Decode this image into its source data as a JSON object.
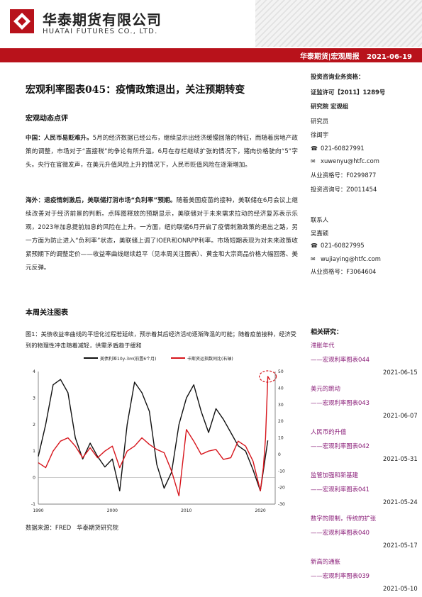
{
  "header": {
    "brand_cn": "华泰期货有限公司",
    "brand_en": "HUATAI FUTURES CO., LTD.",
    "bar_text": "华泰期货|宏观周报   2021-06-19",
    "brand_color": "#b8121b"
  },
  "title": "宏观利率图表045：疫情政策退出，关注预期转变",
  "section_dynamics": "宏观动态点评",
  "p1_bold": "中国：人民币易贬难升。",
  "p1_text": "5月的经济数据已经公布，继续显示出经济缓慢回落的特征，而随着房地产政策的调整，市场对于“直接税”的争论有所升温。6月在存栏继续扩张的情况下，猪肉价格驶向“5”字头。央行在官微发声，在美元升值风险上升的情况下，人民币贬值风险在逐渐增加。",
  "p2_bold": "海外：退疫情刺激后，美联储打消市场“负利率”预期。",
  "p2_text": "随着美国疫苗的接种，美联储在6月会议上继续改善对于经济前景的判断。点阵图释放的预期显示，美联储对于未来需求拉动的经济复苏表示乐观，2023年加息提前加息的风险在上升。一方面，纽约联储6月开启了疫情刺激政策的退出之路，另一方面为防止进入“负利率”状态，美联储上调了IOER和ONRPP利率。市场短期表现为对未来政策收紧预期下的调整定价——收益率曲线继续趋平（见本周关注图表）、黄金和大宗商品价格大幅回落、美元反弹。",
  "analyst": {
    "heading": "投资咨询业务资格：",
    "license": "证监许可【2011】1289号",
    "dept": "研究院  宏观组",
    "role1": "研究员",
    "name1": "徐闽宇",
    "phone1": "021-60827991",
    "email1": "xuwenyu@htfc.com",
    "cert1": "从业资格号：F0299877",
    "invest1": "投资咨询号：Z0011454",
    "role2": "联系人",
    "name2": "吴嘉颖",
    "phone2": "021-60827995",
    "email2": "wujiaying@htfc.com",
    "cert2": "从业资格号：F3064604"
  },
  "section_chart": "本周关注图表",
  "chart_caption": "图1：美债收益率曲线的平坦化过程若延续，预示着其后经济活动逐渐降温的可能；随着疫苗接种，经济受到的物理性冲击随着减轻，供需矛盾趋于缓和",
  "chart_data": {
    "type": "line",
    "series": [
      {
        "name": "美债利差10y-3m(前置6个月)",
        "color": "#111111",
        "axis": "left",
        "x": [
          1990,
          1991,
          1992,
          1993,
          1994,
          1995,
          1996,
          1997,
          1998,
          1999,
          2000,
          2001,
          2002,
          2003,
          2004,
          2005,
          2006,
          2007,
          2008,
          2009,
          2010,
          2011,
          2012,
          2013,
          2014,
          2015,
          2016,
          2017,
          2018,
          2019,
          2020,
          2021
        ],
        "values": [
          0.8,
          2.0,
          3.5,
          3.7,
          3.2,
          1.5,
          0.7,
          1.3,
          0.8,
          0.4,
          0.7,
          -0.5,
          2.0,
          3.6,
          3.2,
          2.5,
          0.5,
          -0.4,
          0.2,
          2.0,
          3.0,
          3.5,
          2.5,
          1.7,
          2.6,
          2.2,
          1.7,
          1.2,
          1.0,
          0.3,
          -0.5,
          1.4
        ]
      },
      {
        "name": "卡斯资运指数同比(右轴)",
        "color": "#d7151c",
        "axis": "right",
        "x": [
          1990,
          1991,
          1992,
          1993,
          1994,
          1995,
          1996,
          1997,
          1998,
          1999,
          2000,
          2001,
          2002,
          2003,
          2004,
          2005,
          2006,
          2007,
          2008,
          2009,
          2010,
          2011,
          2012,
          2013,
          2014,
          2015,
          2016,
          2017,
          2018,
          2019,
          2020,
          2020.4,
          2020.7,
          2021,
          2021.3
        ],
        "values": [
          -5,
          -8,
          2,
          8,
          10,
          5,
          -2,
          4,
          -2,
          2,
          5,
          -8,
          2,
          5,
          10,
          6,
          3,
          1,
          -10,
          -25,
          15,
          8,
          0,
          2,
          3,
          -3,
          -2,
          8,
          5,
          -4,
          -22,
          -8,
          10,
          47,
          45
        ]
      }
    ],
    "x_ticks": [
      "1990",
      "2000",
      "2010",
      "2020"
    ],
    "y_left_ticks": [
      "-1",
      "0",
      "1",
      "2",
      "3",
      "4"
    ],
    "y_right_ticks": [
      "-30",
      "-20",
      "-10",
      "0",
      "10",
      "20",
      "30",
      "40",
      "50"
    ],
    "xlim": [
      1990,
      2022
    ],
    "ylim_left": [
      -1,
      4
    ],
    "ylim_right": [
      -30,
      50
    ],
    "highlight": "peak circled with red dashed ellipse"
  },
  "source": "数据来源：FRED   华泰期货研究院",
  "related": {
    "heading": "相关研究：",
    "items": [
      {
        "topic": "滞胀年代",
        "link": "——宏观利率图表044",
        "date": "2021-06-15"
      },
      {
        "topic": "美元的跳动",
        "link": "——宏观利率图表043",
        "date": "2021-06-07"
      },
      {
        "topic": "人民币的升值",
        "link": "——宏观利率图表042",
        "date": "2021-05-31"
      },
      {
        "topic": "监管加强和新基建",
        "link": "——宏观利率图表041",
        "date": "2021-05-24"
      },
      {
        "topic": "数字的限制，传统的扩张",
        "link": "——宏观利率图表040",
        "date": "2021-05-17"
      },
      {
        "topic": "新高的通胀",
        "link": "——宏观利率图表039",
        "date": "2021-05-10"
      }
    ]
  }
}
